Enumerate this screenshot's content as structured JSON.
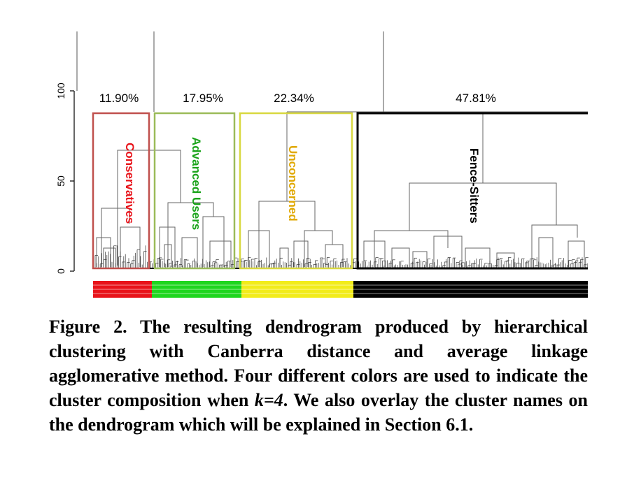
{
  "figure": {
    "y_ticks": [
      {
        "value": 0,
        "label": "0"
      },
      {
        "value": 50,
        "label": "50"
      },
      {
        "value": 100,
        "label": "100"
      }
    ],
    "clusters": [
      {
        "name": "Conservatives",
        "percent": "11.90%",
        "color": "#e8131a",
        "box_color": "#c0504d"
      },
      {
        "name": "Advanced Users",
        "percent": "17.95%",
        "color": "#1aa31a",
        "box_color": "#9bbb59"
      },
      {
        "name": "Unconcerned",
        "percent": "22.34%",
        "color": "#e0a800",
        "box_color": "#d8d840"
      },
      {
        "name": "Fence-Sitters",
        "percent": "47.81%",
        "color": "#000000",
        "box_color": "#000000"
      }
    ],
    "k": 4
  },
  "caption": {
    "prefix": "Figure 2. The resulting dendrogram produced by hierarchical clustering with Canberra distance and average linkage agglomerative method. Four different colors are used to indicate the cluster composition when ",
    "k_text": "k=4",
    "suffix": ". We also overlay the cluster names on the dendrogram which will be explained in Section 6.1."
  }
}
